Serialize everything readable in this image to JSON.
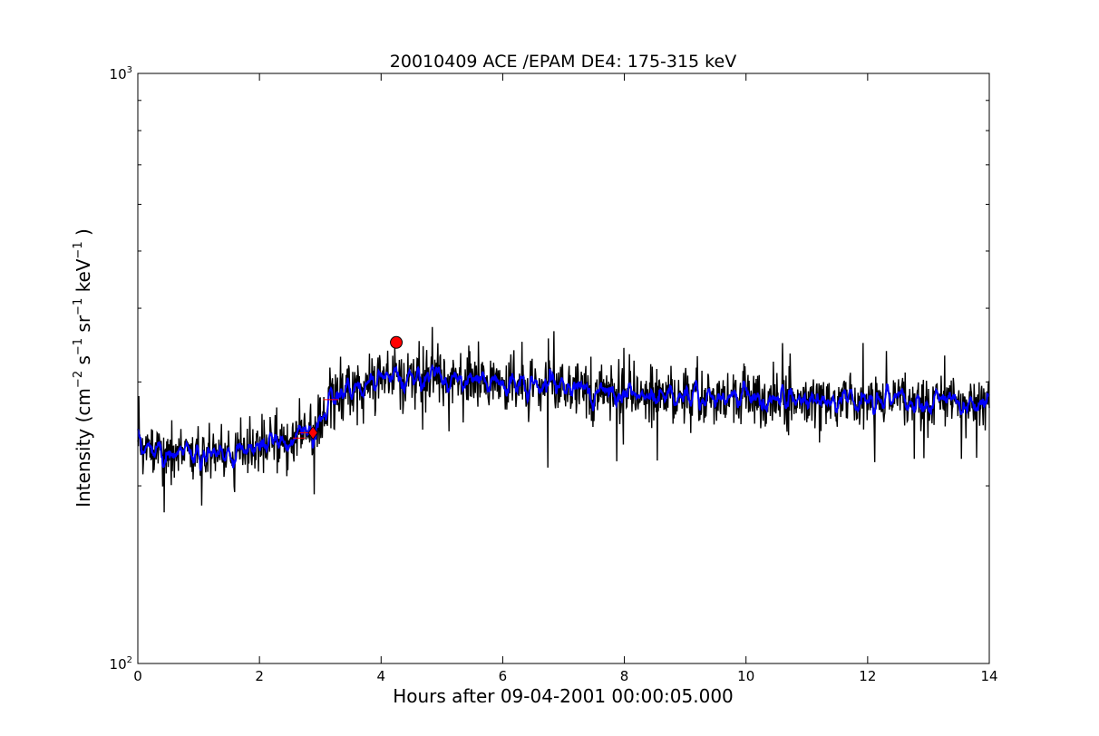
{
  "chart_data": {
    "type": "line",
    "title": "20010409 ACE /EPAM DE4: 175-315 keV",
    "xlabel": "Hours after 09-04-2001 00:00:05.000",
    "ylabel": {
      "base": "Intensity (cm",
      "exp1": "−2",
      "mid1": " s",
      "exp2": "−1",
      "mid2": " sr",
      "exp3": "−1",
      "mid3": " keV",
      "exp4": "−1",
      "end": " )"
    },
    "xlim": [
      0,
      14
    ],
    "ylim": [
      100,
      1000
    ],
    "yscale": "log",
    "grid": false,
    "x_ticks": [
      {
        "value": 0,
        "label": "0"
      },
      {
        "value": 2,
        "label": "2"
      },
      {
        "value": 4,
        "label": "4"
      },
      {
        "value": 6,
        "label": "6"
      },
      {
        "value": 8,
        "label": "8"
      },
      {
        "value": 10,
        "label": "10"
      },
      {
        "value": 12,
        "label": "12"
      },
      {
        "value": 14,
        "label": "14"
      }
    ],
    "y_ticks": [
      {
        "value": 100,
        "base": "10",
        "exp": "2"
      },
      {
        "value": 1000,
        "base": "10",
        "exp": "3"
      }
    ],
    "series_colors": {
      "raw": "#000000",
      "smoothed": "#0000ff",
      "markers": "#ff0000"
    },
    "profile": [
      {
        "x": 0.0,
        "y": 232
      },
      {
        "x": 0.5,
        "y": 230
      },
      {
        "x": 1.0,
        "y": 227
      },
      {
        "x": 1.5,
        "y": 229
      },
      {
        "x": 2.0,
        "y": 233
      },
      {
        "x": 2.5,
        "y": 240
      },
      {
        "x": 2.9,
        "y": 250
      },
      {
        "x": 3.1,
        "y": 265
      },
      {
        "x": 3.2,
        "y": 290
      },
      {
        "x": 3.4,
        "y": 292
      },
      {
        "x": 3.8,
        "y": 300
      },
      {
        "x": 4.2,
        "y": 305
      },
      {
        "x": 4.8,
        "y": 306
      },
      {
        "x": 5.5,
        "y": 302
      },
      {
        "x": 6.5,
        "y": 296
      },
      {
        "x": 8.0,
        "y": 288
      },
      {
        "x": 10.0,
        "y": 280
      },
      {
        "x": 12.0,
        "y": 278
      },
      {
        "x": 14.0,
        "y": 276
      }
    ],
    "markers": [
      {
        "name": "onset",
        "x": 2.88,
        "y": 246,
        "shape": "diamond"
      },
      {
        "name": "peak",
        "x": 4.25,
        "y": 350,
        "shape": "circle"
      }
    ],
    "steps": [
      {
        "x0": 2.55,
        "x1": 2.75,
        "y": 241
      },
      {
        "x0": 2.65,
        "x1": 2.8,
        "y": 246
      },
      {
        "x0": 3.05,
        "x1": 3.3,
        "y": 280
      }
    ]
  }
}
